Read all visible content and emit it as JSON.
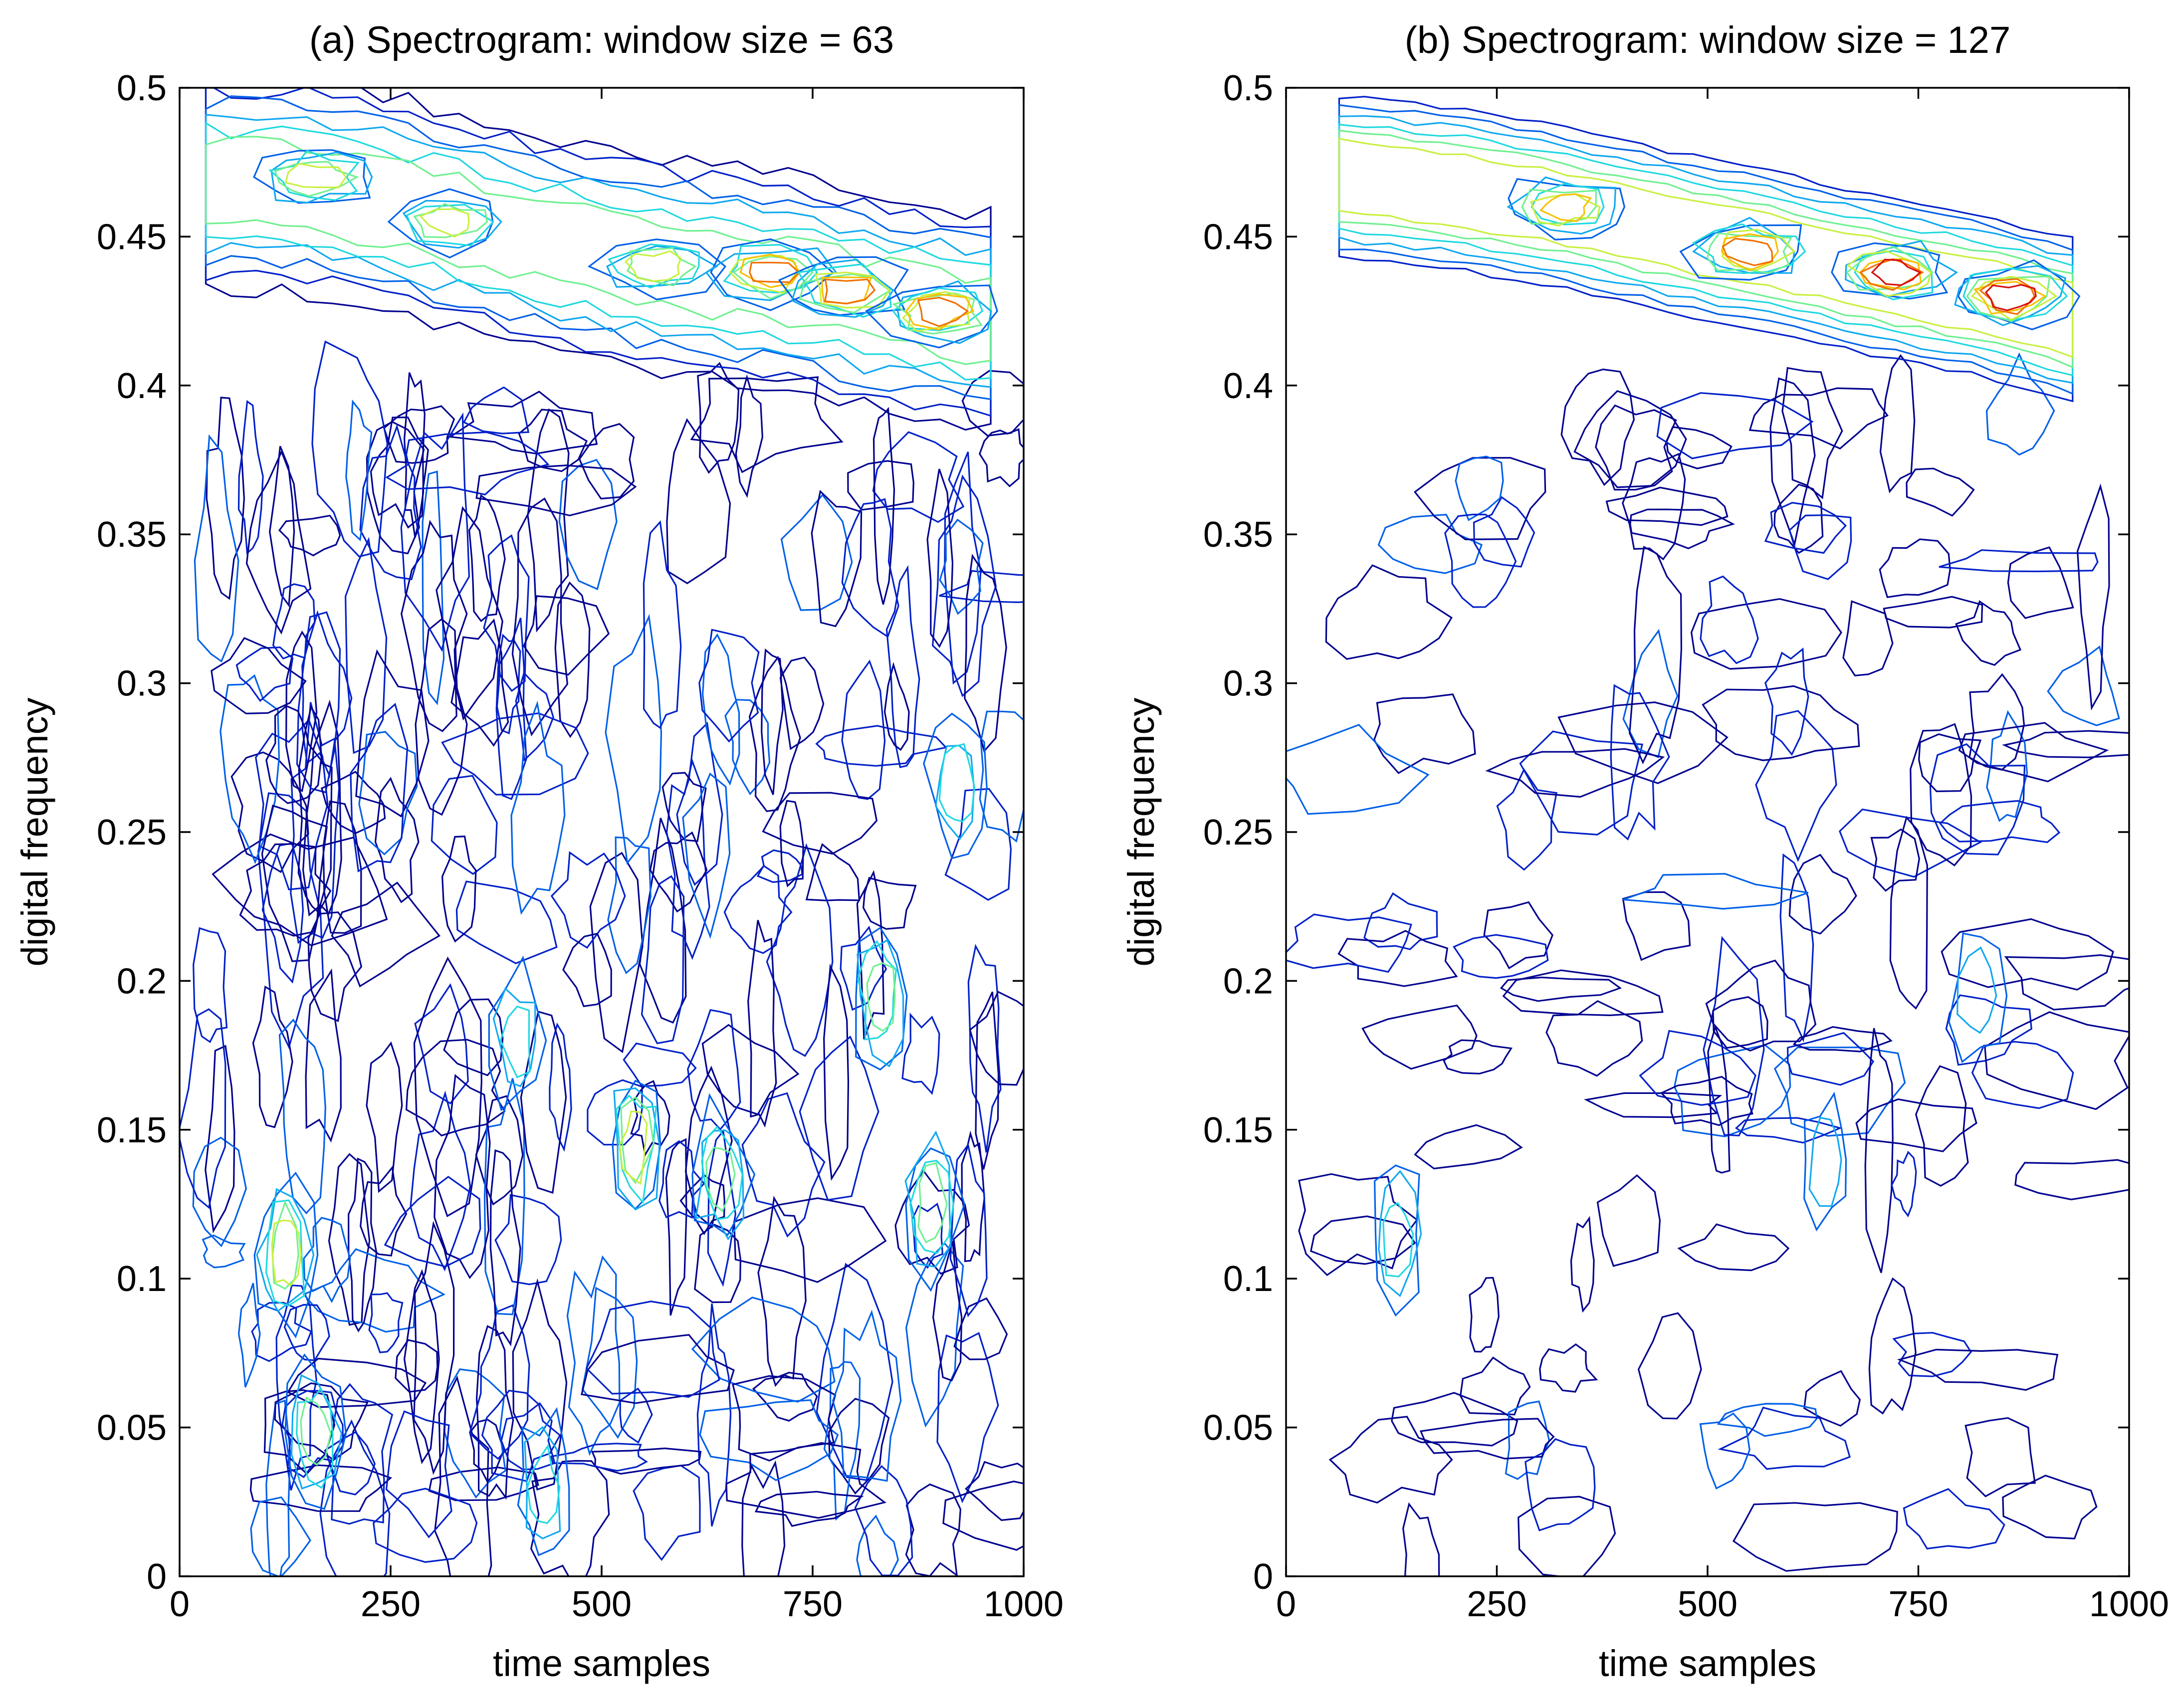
{
  "chart_data": [
    {
      "type": "contour",
      "panel": "a",
      "title": "(a) Spectrogram: window size = 63",
      "xlabel": "time samples",
      "ylabel": "digital frequency",
      "xlim": [
        0,
        1000
      ],
      "ylim": [
        0,
        0.5
      ],
      "xticks": [
        "0",
        "250",
        "500",
        "750",
        "1000"
      ],
      "yticks": [
        "0",
        "0.05",
        "0.1",
        "0.15",
        "0.2",
        "0.25",
        "0.3",
        "0.35",
        "0.4",
        "0.45",
        "0.5"
      ],
      "data_x_range": [
        31,
        985
      ],
      "ridge": {
        "description": "strong chirp ridge near top of spectrum",
        "points": [
          [
            31,
            0.468
          ],
          [
            160,
            0.467
          ],
          [
            320,
            0.456
          ],
          [
            450,
            0.447
          ],
          [
            570,
            0.44
          ],
          [
            700,
            0.436
          ],
          [
            830,
            0.428
          ],
          [
            985,
            0.42
          ]
        ],
        "peak_level": 7
      },
      "hot_spots": [
        {
          "x": 160,
          "y": 0.47,
          "level": 5
        },
        {
          "x": 320,
          "y": 0.455,
          "level": 5
        },
        {
          "x": 565,
          "y": 0.44,
          "level": 5
        },
        {
          "x": 700,
          "y": 0.438,
          "level": 7
        },
        {
          "x": 790,
          "y": 0.432,
          "level": 7
        },
        {
          "x": 900,
          "y": 0.425,
          "level": 7
        },
        {
          "x": 125,
          "y": 0.108,
          "level": 5
        },
        {
          "x": 160,
          "y": 0.048,
          "level": 4
        },
        {
          "x": 540,
          "y": 0.145,
          "level": 5
        },
        {
          "x": 640,
          "y": 0.135,
          "level": 4
        },
        {
          "x": 830,
          "y": 0.195,
          "level": 4
        },
        {
          "x": 890,
          "y": 0.125,
          "level": 4
        },
        {
          "x": 400,
          "y": 0.18,
          "level": 3
        },
        {
          "x": 920,
          "y": 0.265,
          "level": 3
        },
        {
          "x": 430,
          "y": 0.03,
          "level": 3
        }
      ],
      "noise_density": "high"
    },
    {
      "type": "contour",
      "panel": "b",
      "title": "(b) Spectrogram: window size = 127",
      "xlabel": "time samples",
      "ylabel": "digital frequency",
      "xlim": [
        0,
        1000
      ],
      "ylim": [
        0,
        0.5
      ],
      "xticks": [
        "0",
        "250",
        "500",
        "750",
        "1000"
      ],
      "yticks": [
        "0",
        "0.05",
        "0.1",
        "0.15",
        "0.2",
        "0.25",
        "0.3",
        "0.35",
        "0.4",
        "0.45",
        "0.5"
      ],
      "data_x_range": [
        63,
        960
      ],
      "ridge": {
        "description": "narrow chirp ridge from upper left to right",
        "points": [
          [
            63,
            0.47
          ],
          [
            200,
            0.466
          ],
          [
            320,
            0.46
          ],
          [
            450,
            0.452
          ],
          [
            560,
            0.446
          ],
          [
            700,
            0.437
          ],
          [
            830,
            0.43
          ],
          [
            960,
            0.42
          ]
        ],
        "peak_level": 8
      },
      "hot_spots": [
        {
          "x": 330,
          "y": 0.46,
          "level": 6
        },
        {
          "x": 550,
          "y": 0.445,
          "level": 7
        },
        {
          "x": 720,
          "y": 0.438,
          "level": 8
        },
        {
          "x": 860,
          "y": 0.43,
          "level": 8
        },
        {
          "x": 130,
          "y": 0.115,
          "level": 3
        },
        {
          "x": 820,
          "y": 0.195,
          "level": 2
        },
        {
          "x": 640,
          "y": 0.14,
          "level": 2
        }
      ],
      "noise_density": "medium"
    }
  ],
  "colormap": [
    "#00008f",
    "#0020c8",
    "#0060e8",
    "#10a8f0",
    "#20d8e0",
    "#70f090",
    "#c8f040",
    "#f8c000",
    "#f07000",
    "#d81010",
    "#800000"
  ]
}
